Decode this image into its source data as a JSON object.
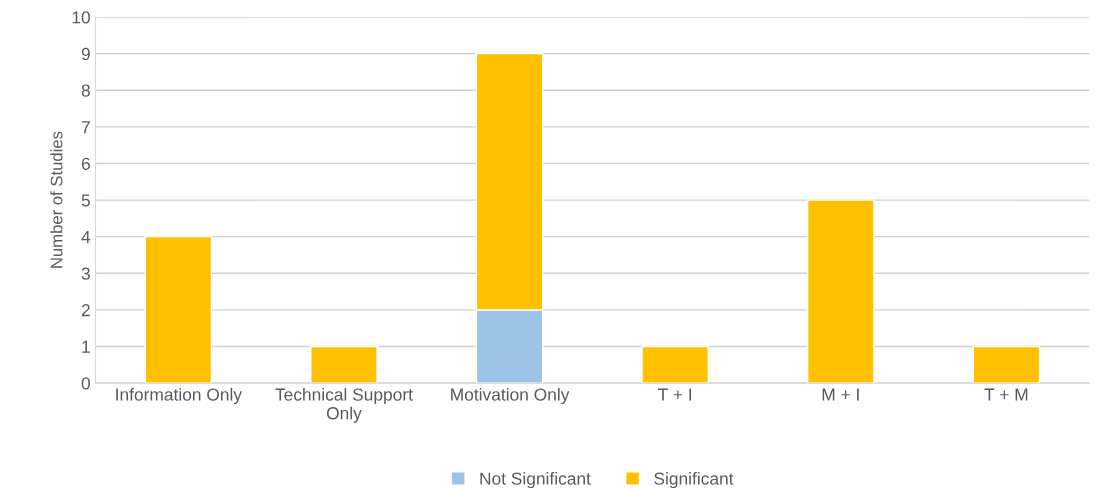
{
  "chart_data": {
    "type": "bar",
    "stacked": true,
    "ylabel": "Number of Studies",
    "categories": [
      "Information Only",
      "Technical Support\nOnly",
      "Motivation Only",
      "T + I",
      "M + I",
      "T + M"
    ],
    "series": [
      {
        "name": "Not Significant",
        "color": "#9dc3e6",
        "values": [
          0,
          0,
          2,
          0,
          0,
          0
        ]
      },
      {
        "name": "Significant",
        "color": "#ffc000",
        "values": [
          4,
          1,
          7,
          1,
          5,
          1
        ]
      }
    ],
    "ylim": [
      0,
      10
    ],
    "yticks": [
      0,
      1,
      2,
      3,
      4,
      5,
      6,
      7,
      8,
      9,
      10
    ],
    "grid": "y",
    "legend": "bottom"
  }
}
